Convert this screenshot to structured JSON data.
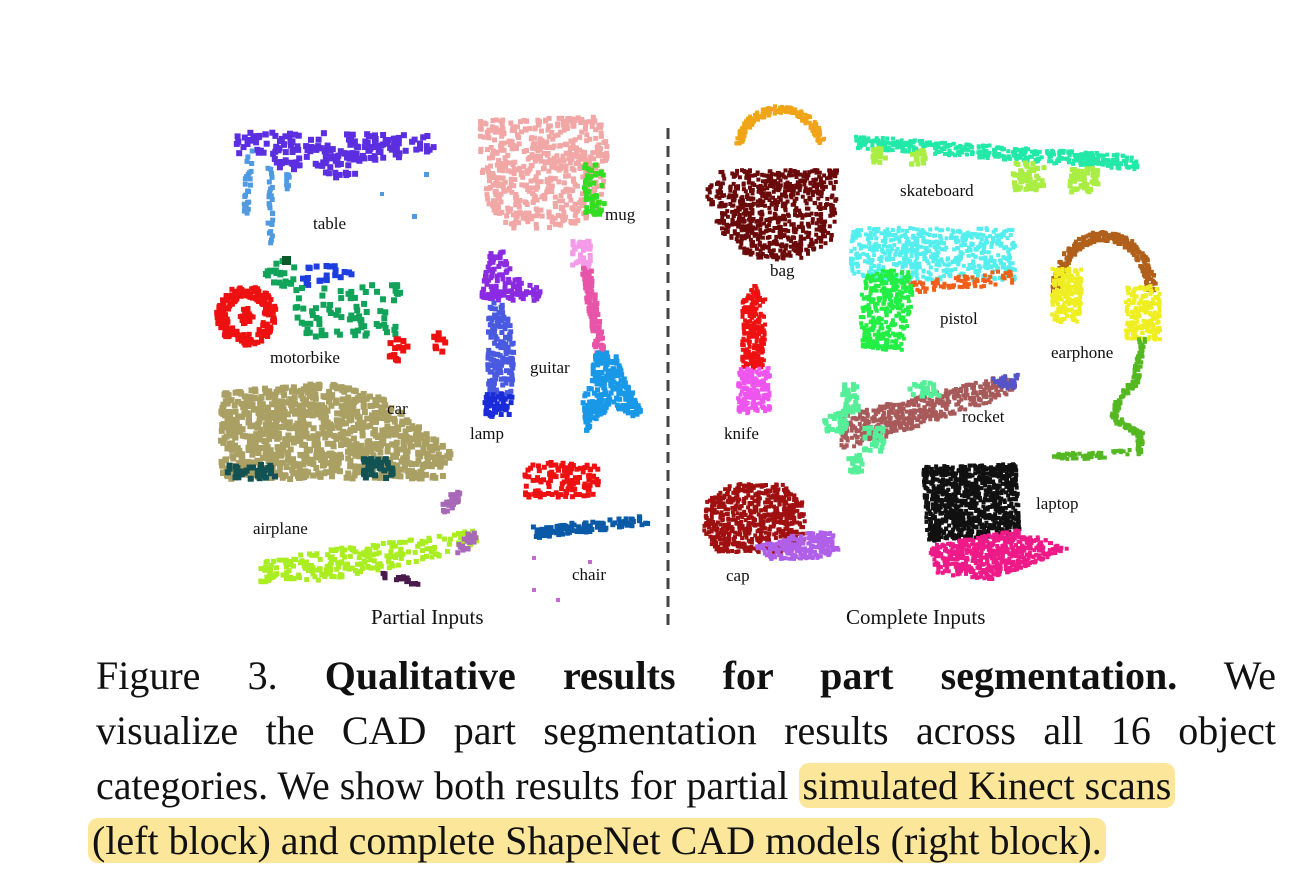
{
  "figure": {
    "blocks": {
      "left_label": "Partial Inputs",
      "right_label": "Complete Inputs"
    },
    "objects": [
      {
        "key": "table",
        "label": "table",
        "colors": [
          "#5b2ee0",
          "#4f9ae0"
        ]
      },
      {
        "key": "mug",
        "label": "mug",
        "colors": [
          "#f2a7a7",
          "#33dd22"
        ]
      },
      {
        "key": "motorbike",
        "label": "motorbike",
        "colors": [
          "#ee1111",
          "#11a35a",
          "#1d3fe0",
          "#0a5a2a"
        ]
      },
      {
        "key": "lamp",
        "label": "lamp",
        "colors": [
          "#8a2be2",
          "#4a5ae0",
          "#1a2bd8"
        ]
      },
      {
        "key": "guitar",
        "label": "guitar",
        "colors": [
          "#f49ae8",
          "#e855a8",
          "#1a98e8"
        ]
      },
      {
        "key": "car",
        "label": "car",
        "colors": [
          "#aaa064",
          "#125252"
        ]
      },
      {
        "key": "airplane",
        "label": "airplane",
        "colors": [
          "#aaee22",
          "#a868b8",
          "#4a1a4a"
        ]
      },
      {
        "key": "chair",
        "label": "chair",
        "colors": [
          "#ee1111",
          "#0a5aa8",
          "#c46ad0"
        ]
      },
      {
        "key": "bag",
        "label": "bag",
        "colors": [
          "#f0a418",
          "#6a0a0a"
        ]
      },
      {
        "key": "skateboard",
        "label": "skateboard",
        "colors": [
          "#22e8a8",
          "#aaee44"
        ]
      },
      {
        "key": "pistol",
        "label": "pistol",
        "colors": [
          "#55eeee",
          "#f0601a",
          "#22ee44"
        ]
      },
      {
        "key": "earphone",
        "label": "earphone",
        "colors": [
          "#b0601a",
          "#eeee22",
          "#55b822"
        ]
      },
      {
        "key": "knife",
        "label": "knife",
        "colors": [
          "#ee1111",
          "#ee55ee"
        ]
      },
      {
        "key": "rocket",
        "label": "rocket",
        "colors": [
          "#a85a5a",
          "#55ee99",
          "#5555c8"
        ]
      },
      {
        "key": "cap",
        "label": "cap",
        "colors": [
          "#a01010",
          "#b060e8"
        ]
      },
      {
        "key": "laptop",
        "label": "laptop",
        "colors": [
          "#111111",
          "#ee1a88"
        ]
      }
    ]
  },
  "caption": {
    "prefix": "Figure 3.",
    "bold": "Qualitative results for part segmentation.",
    "line1_end": "We",
    "line2": "visualize the CAD part segmentation results across all 16 object",
    "line3_plain": "categories. We show both results for partial",
    "line3_highlight": "simulated Kinect scans",
    "line4_highlight": "(left block) and complete ShapeNet CAD models (right block)."
  },
  "highlight_color": "#fbe69a"
}
